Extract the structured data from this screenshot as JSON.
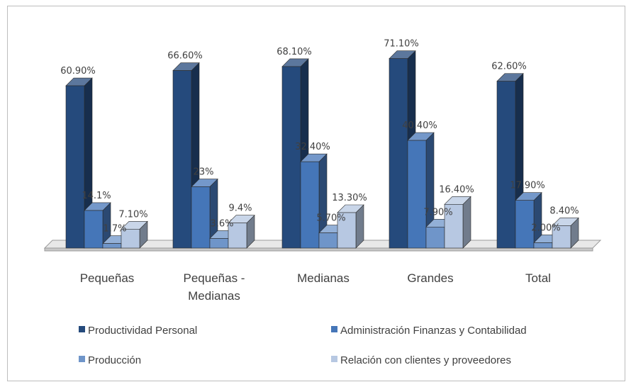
{
  "chart_data": {
    "type": "bar",
    "title": "",
    "xlabel": "",
    "ylabel": "",
    "ylim": [
      0,
      75
    ],
    "grid": false,
    "legend_position": "bottom",
    "categories": [
      "Pequeñas",
      "Pequeñas - Medianas",
      "Medianas",
      "Grandes",
      "Total"
    ],
    "category_lines": [
      [
        "Pequeñas"
      ],
      [
        "Pequeñas -",
        "Medianas"
      ],
      [
        "Medianas"
      ],
      [
        "Grandes"
      ],
      [
        "Total"
      ]
    ],
    "series": [
      {
        "name": "Productividad Personal",
        "color": "#254a7c",
        "values": [
          60.9,
          66.6,
          68.1,
          71.1,
          62.6
        ],
        "labels": [
          "60.90%",
          "66.60%",
          "68.10%",
          "71.10%",
          "62.60%"
        ]
      },
      {
        "name": "Administración Finanzas y Contabilidad",
        "color": "#4576b8",
        "values": [
          14.1,
          23,
          32.4,
          40.4,
          17.9
        ],
        "labels": [
          "14.1%",
          "23%",
          "32.40%",
          "40.40%",
          "17.90%"
        ]
      },
      {
        "name": "Producción",
        "color": "#6f95c9",
        "values": [
          1.7,
          3.6,
          5.7,
          7.9,
          2.0
        ],
        "labels": [
          "1.7%",
          "3.6%",
          "5.70%",
          "7.90%",
          "2.00%"
        ]
      },
      {
        "name": "Relación con clientes y proveedores",
        "color": "#b7c8e2",
        "values": [
          7.1,
          9.4,
          13.3,
          16.4,
          8.4
        ],
        "labels": [
          "7.10%",
          "9.4%",
          "13.30%",
          "16.40%",
          "8.40%"
        ]
      }
    ]
  }
}
